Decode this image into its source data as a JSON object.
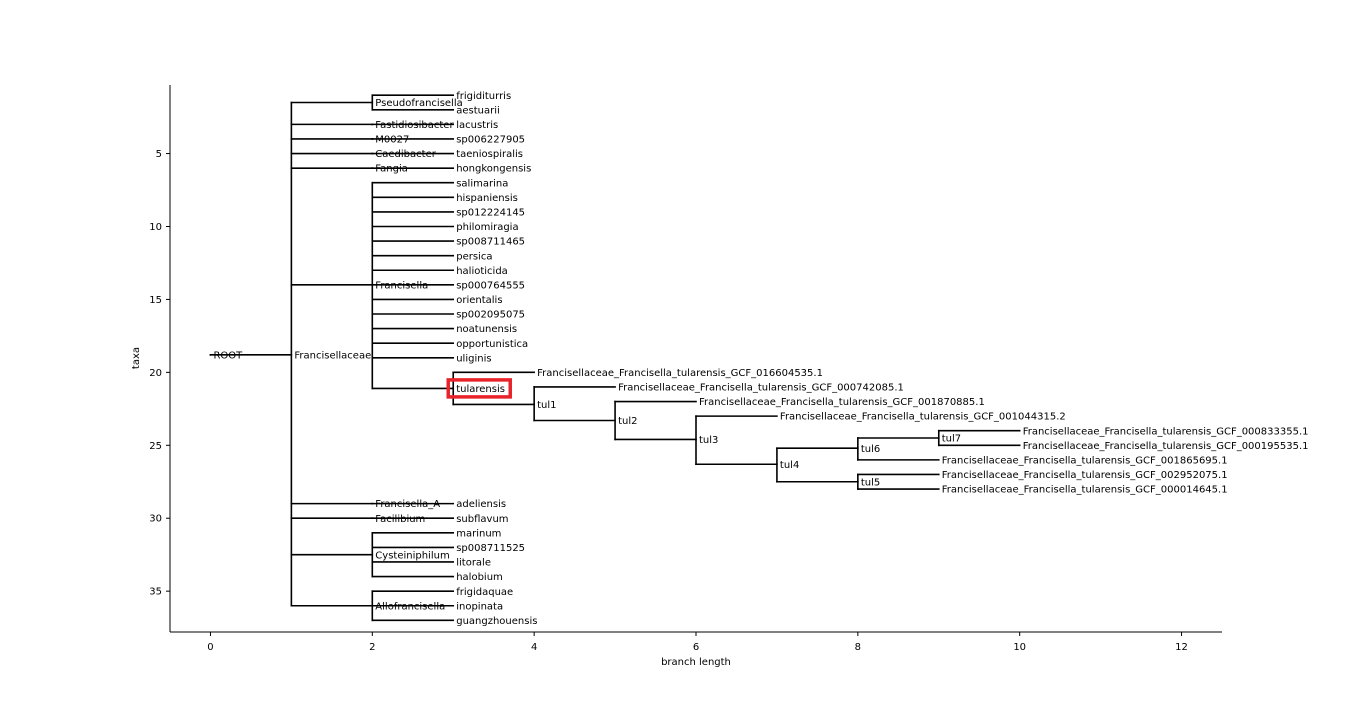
{
  "chart_data": {
    "type": "dendrogram",
    "xlabel": "branch length",
    "ylabel": "taxa",
    "xlim": [
      -0.5,
      12.5
    ],
    "ylim": [
      37.8,
      0.3
    ],
    "x_ticks": [
      0,
      2,
      4,
      6,
      8,
      10,
      12
    ],
    "y_ticks": [
      5,
      10,
      15,
      20,
      25,
      30,
      35
    ],
    "highlight_label": "tulartensis_marker",
    "highlight_color": "#e8232a",
    "nodes": [
      {
        "id": "root",
        "label": "ROOT",
        "x": 0,
        "y": 18.8
      },
      {
        "id": "francisellaceae",
        "label": "Francisellaceae",
        "x": 1,
        "y": 18.8,
        "parent": "root"
      },
      {
        "id": "pseudofrancisella",
        "label": "Pseudofrancisella",
        "x": 2,
        "y": 1.5,
        "parent": "francisellaceae"
      },
      {
        "id": "fastidiosibacter",
        "label": "Fastidiosibacter",
        "x": 2,
        "y": 3,
        "parent": "francisellaceae"
      },
      {
        "id": "m0027",
        "label": "M0027",
        "x": 2,
        "y": 4,
        "parent": "francisellaceae"
      },
      {
        "id": "caedibacter",
        "label": "Caedibacter",
        "x": 2,
        "y": 5,
        "parent": "francisellaceae"
      },
      {
        "id": "fangia",
        "label": "Fangia",
        "x": 2,
        "y": 6,
        "parent": "francisellaceae"
      },
      {
        "id": "francisella",
        "label": "Francisella",
        "x": 2,
        "y": 14,
        "parent": "francisellaceae"
      },
      {
        "id": "francisella_a",
        "label": "Francisella_A",
        "x": 2,
        "y": 29,
        "parent": "francisellaceae"
      },
      {
        "id": "facilibium",
        "label": "Facilibium",
        "x": 2,
        "y": 30,
        "parent": "francisellaceae"
      },
      {
        "id": "cysteiniphilum",
        "label": "Cysteiniphilum",
        "x": 2,
        "y": 32.5,
        "parent": "francisellaceae"
      },
      {
        "id": "allofrancisella",
        "label": "Allofrancisella",
        "x": 2,
        "y": 36,
        "parent": "francisellaceae"
      },
      {
        "id": "frigiditurris",
        "label": "frigiditurris",
        "x": 3,
        "y": 1,
        "parent": "pseudofrancisella"
      },
      {
        "id": "aestuarii",
        "label": "aestuarii",
        "x": 3,
        "y": 2,
        "parent": "pseudofrancisella"
      },
      {
        "id": "lacustris",
        "label": "lacustris",
        "x": 3,
        "y": 3,
        "parent": "fastidiosibacter"
      },
      {
        "id": "sp006227905",
        "label": "sp006227905",
        "x": 3,
        "y": 4,
        "parent": "m0027"
      },
      {
        "id": "taeniospiralis",
        "label": "taeniospiralis",
        "x": 3,
        "y": 5,
        "parent": "caedibacter"
      },
      {
        "id": "hongkongensis",
        "label": "hongkongensis",
        "x": 3,
        "y": 6,
        "parent": "fangia"
      },
      {
        "id": "salimarina",
        "label": "salimarina",
        "x": 3,
        "y": 7,
        "parent": "francisella"
      },
      {
        "id": "hispaniensis",
        "label": "hispaniensis",
        "x": 3,
        "y": 8,
        "parent": "francisella"
      },
      {
        "id": "sp012224145",
        "label": "sp012224145",
        "x": 3,
        "y": 9,
        "parent": "francisella"
      },
      {
        "id": "philomiragia",
        "label": "philomiragia",
        "x": 3,
        "y": 10,
        "parent": "francisella"
      },
      {
        "id": "sp008711465",
        "label": "sp008711465",
        "x": 3,
        "y": 11,
        "parent": "francisella"
      },
      {
        "id": "persica",
        "label": "persica",
        "x": 3,
        "y": 12,
        "parent": "francisella"
      },
      {
        "id": "halioticida",
        "label": "halioticida",
        "x": 3,
        "y": 13,
        "parent": "francisella"
      },
      {
        "id": "sp000764555",
        "label": "sp000764555",
        "x": 3,
        "y": 14,
        "parent": "francisella"
      },
      {
        "id": "orientalis",
        "label": "orientalis",
        "x": 3,
        "y": 15,
        "parent": "francisella"
      },
      {
        "id": "sp002095075",
        "label": "sp002095075",
        "x": 3,
        "y": 16,
        "parent": "francisella"
      },
      {
        "id": "noatunensis",
        "label": "noatunensis",
        "x": 3,
        "y": 17,
        "parent": "francisella"
      },
      {
        "id": "opportunistica",
        "label": "opportunistica",
        "x": 3,
        "y": 18,
        "parent": "francisella"
      },
      {
        "id": "uliginis",
        "label": "uliginis",
        "x": 3,
        "y": 19,
        "parent": "francisella"
      },
      {
        "id": "tularensis",
        "label": "tularensis",
        "x": 3,
        "y": 21.1,
        "parent": "francisella",
        "highlight": true
      },
      {
        "id": "g016604535",
        "label": "Francisellaceae_Francisella_tularensis_GCF_016604535.1",
        "x": 4,
        "y": 20,
        "parent": "tularensis"
      },
      {
        "id": "tul1",
        "label": "tul1",
        "x": 4,
        "y": 22.2,
        "parent": "tularensis"
      },
      {
        "id": "g000742085",
        "label": "Francisellaceae_Francisella_tularensis_GCF_000742085.1",
        "x": 5,
        "y": 21,
        "parent": "tul1"
      },
      {
        "id": "tul2",
        "label": "tul2",
        "x": 5,
        "y": 23.3,
        "parent": "tul1"
      },
      {
        "id": "g001870885",
        "label": "Francisellaceae_Francisella_tularensis_GCF_001870885.1",
        "x": 6,
        "y": 22,
        "parent": "tul2"
      },
      {
        "id": "tul3",
        "label": "tul3",
        "x": 6,
        "y": 24.6,
        "parent": "tul2"
      },
      {
        "id": "g001044315",
        "label": "Francisellaceae_Francisella_tularensis_GCF_001044315.2",
        "x": 7,
        "y": 23,
        "parent": "tul3"
      },
      {
        "id": "tul4",
        "label": "tul4",
        "x": 7,
        "y": 26.3,
        "parent": "tul3"
      },
      {
        "id": "tul6",
        "label": "tul6",
        "x": 8,
        "y": 25.2,
        "parent": "tul4"
      },
      {
        "id": "tul5",
        "label": "tul5",
        "x": 8,
        "y": 27.5,
        "parent": "tul4"
      },
      {
        "id": "tul7",
        "label": "tul7",
        "x": 9,
        "y": 24.5,
        "parent": "tul6"
      },
      {
        "id": "g001865695",
        "label": "Francisellaceae_Francisella_tularensis_GCF_001865695.1",
        "x": 9,
        "y": 26,
        "parent": "tul6"
      },
      {
        "id": "g000833355",
        "label": "Francisellaceae_Francisella_tularensis_GCF_000833355.1",
        "x": 10,
        "y": 24,
        "parent": "tul7"
      },
      {
        "id": "g000195535",
        "label": "Francisellaceae_Francisella_tularensis_GCF_000195535.1",
        "x": 10,
        "y": 25,
        "parent": "tul7"
      },
      {
        "id": "g002952075",
        "label": "Francisellaceae_Francisella_tularensis_GCF_002952075.1",
        "x": 9,
        "y": 27,
        "parent": "tul5"
      },
      {
        "id": "g000014645",
        "label": "Francisellaceae_Francisella_tularensis_GCF_000014645.1",
        "x": 9,
        "y": 28,
        "parent": "tul5"
      },
      {
        "id": "adeliensis",
        "label": "adeliensis",
        "x": 3,
        "y": 29,
        "parent": "francisella_a"
      },
      {
        "id": "subflavum",
        "label": "subflavum",
        "x": 3,
        "y": 30,
        "parent": "facilibium"
      },
      {
        "id": "marinum",
        "label": "marinum",
        "x": 3,
        "y": 31,
        "parent": "cysteiniphilum"
      },
      {
        "id": "sp008711525",
        "label": "sp008711525",
        "x": 3,
        "y": 32,
        "parent": "cysteiniphilum"
      },
      {
        "id": "litorale",
        "label": "litorale",
        "x": 3,
        "y": 33,
        "parent": "cysteiniphilum"
      },
      {
        "id": "halobium",
        "label": "halobium",
        "x": 3,
        "y": 34,
        "parent": "cysteiniphilum"
      },
      {
        "id": "frigidaquae",
        "label": "frigidaquae",
        "x": 3,
        "y": 35,
        "parent": "allofrancisella"
      },
      {
        "id": "inopinata",
        "label": "inopinata",
        "x": 3,
        "y": 36,
        "parent": "allofrancisella"
      },
      {
        "id": "guangzhouensis",
        "label": "guangzhouensis",
        "x": 3,
        "y": 37,
        "parent": "allofrancisella"
      }
    ]
  }
}
